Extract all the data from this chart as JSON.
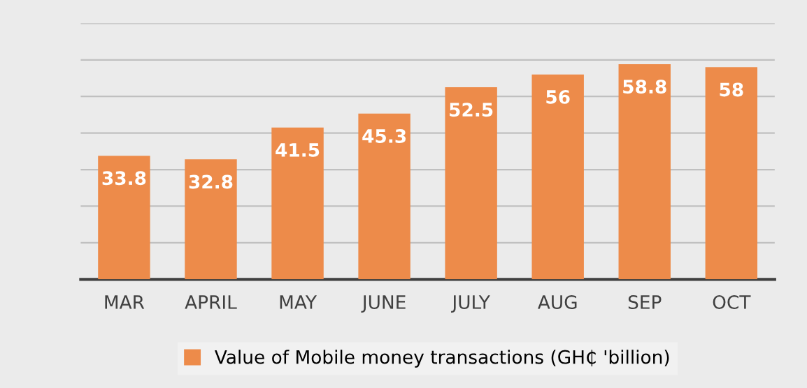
{
  "chart_data": {
    "type": "bar",
    "categories": [
      "MAR",
      "APRIL",
      "MAY",
      "JUNE",
      "JULY",
      "AUG",
      "SEP",
      "OCT"
    ],
    "series": [
      {
        "name": "Value of Mobile money transactions (GH₵ 'billion)",
        "color": "#ed8b4a",
        "values": [
          33.8,
          32.8,
          41.5,
          45.3,
          52.5,
          56,
          58.8,
          58
        ]
      }
    ],
    "ylim": [
      0,
      70
    ],
    "yticks": [
      {
        "value": 0,
        "label": null
      },
      {
        "value": 10,
        "label": null
      },
      {
        "value": 20,
        "label": null
      },
      {
        "value": 30,
        "label": null
      },
      {
        "value": 40,
        "label": null
      },
      {
        "value": 50,
        "label": null
      },
      {
        "value": 60,
        "label": null
      },
      {
        "value": 70,
        "label": null
      }
    ],
    "grid": "y",
    "legend": "bottom",
    "data_labels": true,
    "tick_labels": "x"
  }
}
